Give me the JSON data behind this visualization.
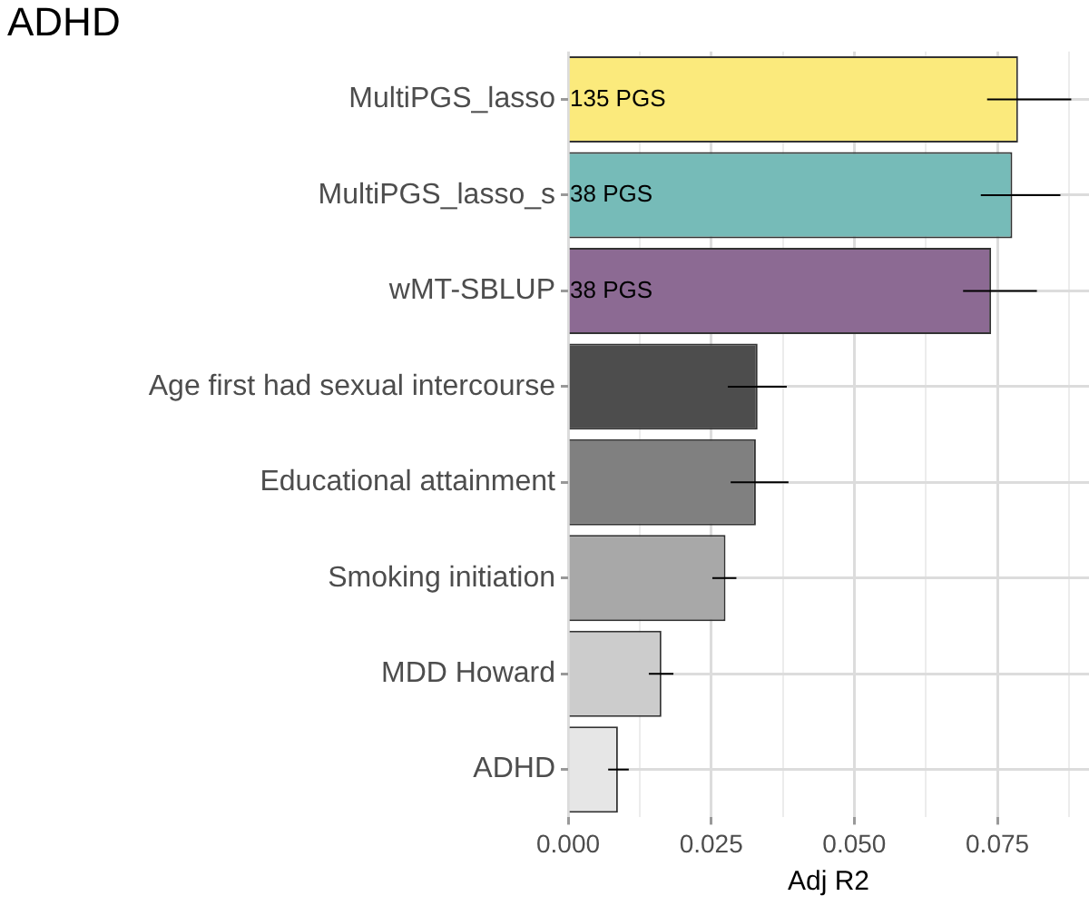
{
  "chart_data": {
    "type": "bar",
    "orientation": "horizontal",
    "title": "ADHD",
    "xlabel": "Adj R2",
    "categories": [
      "MultiPGS_lasso",
      "MultiPGS_lasso_s",
      "wMT-SBLUP",
      "Age first had sexual intercourse",
      "Educational attainment",
      "Smoking initiation",
      "MDD Howard",
      "ADHD"
    ],
    "values": [
      0.0786,
      0.0776,
      0.0739,
      0.0331,
      0.0328,
      0.0275,
      0.0163,
      0.0087
    ],
    "colors": [
      "#fbea7c",
      "#76bbb8",
      "#8c6a93",
      "#4d4d4d",
      "#808080",
      "#a8a8a8",
      "#cccccc",
      "#e6e6e6"
    ],
    "errors": [
      [
        0.0732,
        0.0879
      ],
      [
        0.0721,
        0.086
      ],
      [
        0.069,
        0.0819
      ],
      [
        0.0279,
        0.0382
      ],
      [
        0.0284,
        0.0385
      ],
      [
        0.0252,
        0.0294
      ],
      [
        0.0141,
        0.0184
      ],
      [
        0.007,
        0.0106
      ]
    ],
    "xlim": [
      0,
      0.091
    ],
    "xticks": [
      {
        "value": 0,
        "label": "0.000"
      },
      {
        "value": 0.0125,
        "label": null
      },
      {
        "value": 0.025,
        "label": "0.025"
      },
      {
        "value": 0.0375,
        "label": null
      },
      {
        "value": 0.05,
        "label": "0.050"
      },
      {
        "value": 0.0625,
        "label": null
      },
      {
        "value": 0.075,
        "label": "0.075"
      },
      {
        "value": 0.0875,
        "label": null
      }
    ],
    "grid": true,
    "annotations": [
      {
        "text": "135 PGS",
        "y": "MultiPGS_lasso"
      },
      {
        "text": "38 PGS",
        "y": "MultiPGS_lasso_s"
      },
      {
        "text": "38 PGS",
        "y": "wMT-SBLUP"
      }
    ]
  }
}
